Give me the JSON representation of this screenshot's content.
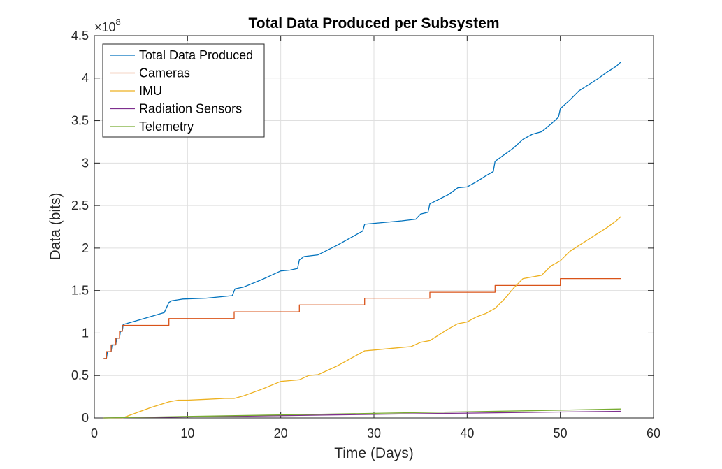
{
  "chart_data": {
    "type": "line",
    "title": "Total Data Produced per Subsystem",
    "xlabel": "Time (Days)",
    "ylabel": "Data (bits)",
    "y_exponent": "×10",
    "y_exponent_power": "8",
    "xlim": [
      0,
      60
    ],
    "ylim": [
      0,
      4.5
    ],
    "x_ticks": [
      0,
      10,
      20,
      30,
      40,
      50,
      60
    ],
    "y_ticks": [
      0,
      0.5,
      1,
      1.5,
      2,
      2.5,
      3,
      3.5,
      4,
      4.5
    ],
    "x_tick_labels": [
      "0",
      "10",
      "20",
      "30",
      "40",
      "50",
      "60"
    ],
    "y_tick_labels": [
      "0",
      "0.5",
      "1",
      "1.5",
      "2",
      "2.5",
      "3",
      "3.5",
      "4",
      "4.5"
    ],
    "grid": true,
    "legend_position": "top-left",
    "series": [
      {
        "name": "Total Data Produced",
        "color": "#0072BD",
        "points": [
          [
            1.0,
            0.7
          ],
          [
            1.3,
            0.7
          ],
          [
            1.4,
            0.78
          ],
          [
            1.8,
            0.78
          ],
          [
            1.9,
            0.86
          ],
          [
            2.3,
            0.86
          ],
          [
            2.4,
            0.94
          ],
          [
            2.7,
            0.94
          ],
          [
            2.8,
            1.02
          ],
          [
            3.0,
            1.02
          ],
          [
            3.1,
            1.1
          ],
          [
            5.0,
            1.16
          ],
          [
            7.5,
            1.24
          ],
          [
            8.0,
            1.36
          ],
          [
            8.3,
            1.38
          ],
          [
            9.5,
            1.4
          ],
          [
            12,
            1.41
          ],
          [
            14.8,
            1.44
          ],
          [
            15.1,
            1.52
          ],
          [
            16,
            1.54
          ],
          [
            18,
            1.63
          ],
          [
            20,
            1.73
          ],
          [
            21,
            1.74
          ],
          [
            21.8,
            1.76
          ],
          [
            22.0,
            1.86
          ],
          [
            22.5,
            1.9
          ],
          [
            24,
            1.92
          ],
          [
            26,
            2.03
          ],
          [
            28.8,
            2.2
          ],
          [
            29.0,
            2.28
          ],
          [
            30,
            2.29
          ],
          [
            33,
            2.32
          ],
          [
            34.5,
            2.34
          ],
          [
            35,
            2.4
          ],
          [
            35.8,
            2.42
          ],
          [
            36.0,
            2.52
          ],
          [
            38,
            2.63
          ],
          [
            39,
            2.71
          ],
          [
            40,
            2.72
          ],
          [
            41,
            2.78
          ],
          [
            42,
            2.85
          ],
          [
            42.8,
            2.9
          ],
          [
            43.0,
            3.02
          ],
          [
            44,
            3.1
          ],
          [
            45,
            3.18
          ],
          [
            46,
            3.28
          ],
          [
            47,
            3.34
          ],
          [
            48,
            3.37
          ],
          [
            49,
            3.46
          ],
          [
            49.8,
            3.54
          ],
          [
            50.0,
            3.64
          ],
          [
            51,
            3.74
          ],
          [
            52,
            3.85
          ],
          [
            53,
            3.92
          ],
          [
            54,
            3.99
          ],
          [
            55,
            4.07
          ],
          [
            56,
            4.14
          ],
          [
            56.5,
            4.19
          ]
        ]
      },
      {
        "name": "Cameras",
        "color": "#D95319",
        "points": [
          [
            1.0,
            0.7
          ],
          [
            1.3,
            0.7
          ],
          [
            1.3,
            0.78
          ],
          [
            1.8,
            0.78
          ],
          [
            1.8,
            0.86
          ],
          [
            2.3,
            0.86
          ],
          [
            2.3,
            0.94
          ],
          [
            2.7,
            0.94
          ],
          [
            2.7,
            1.02
          ],
          [
            3.0,
            1.02
          ],
          [
            3.0,
            1.09
          ],
          [
            8.0,
            1.09
          ],
          [
            8.0,
            1.17
          ],
          [
            15.0,
            1.17
          ],
          [
            15.0,
            1.25
          ],
          [
            22.0,
            1.25
          ],
          [
            22.0,
            1.33
          ],
          [
            29.0,
            1.33
          ],
          [
            29.0,
            1.41
          ],
          [
            36.0,
            1.41
          ],
          [
            36.0,
            1.48
          ],
          [
            43.0,
            1.48
          ],
          [
            43.0,
            1.56
          ],
          [
            50.0,
            1.56
          ],
          [
            50.0,
            1.64
          ],
          [
            56.5,
            1.64
          ]
        ]
      },
      {
        "name": "IMU",
        "color": "#EDB120",
        "points": [
          [
            1.0,
            0.0
          ],
          [
            3.0,
            0.0
          ],
          [
            4,
            0.04
          ],
          [
            6,
            0.12
          ],
          [
            8,
            0.19
          ],
          [
            9,
            0.21
          ],
          [
            10,
            0.21
          ],
          [
            12,
            0.22
          ],
          [
            14,
            0.23
          ],
          [
            15,
            0.23
          ],
          [
            16,
            0.26
          ],
          [
            18,
            0.34
          ],
          [
            20,
            0.43
          ],
          [
            21,
            0.44
          ],
          [
            22,
            0.45
          ],
          [
            23,
            0.5
          ],
          [
            24,
            0.51
          ],
          [
            26,
            0.61
          ],
          [
            28,
            0.73
          ],
          [
            29,
            0.79
          ],
          [
            30,
            0.8
          ],
          [
            32,
            0.82
          ],
          [
            34,
            0.84
          ],
          [
            35,
            0.89
          ],
          [
            36,
            0.91
          ],
          [
            37,
            0.98
          ],
          [
            38,
            1.05
          ],
          [
            39,
            1.11
          ],
          [
            40,
            1.13
          ],
          [
            41,
            1.19
          ],
          [
            42,
            1.23
          ],
          [
            43,
            1.29
          ],
          [
            44,
            1.4
          ],
          [
            45,
            1.53
          ],
          [
            46,
            1.64
          ],
          [
            47,
            1.66
          ],
          [
            48,
            1.68
          ],
          [
            49,
            1.79
          ],
          [
            50,
            1.85
          ],
          [
            51,
            1.96
          ],
          [
            52,
            2.03
          ],
          [
            53,
            2.1
          ],
          [
            54,
            2.17
          ],
          [
            55,
            2.24
          ],
          [
            56,
            2.32
          ],
          [
            56.5,
            2.37
          ]
        ]
      },
      {
        "name": "Radiation Sensors",
        "color": "#7E2F8E",
        "points": [
          [
            1.0,
            0.0
          ],
          [
            10,
            0.012
          ],
          [
            20,
            0.027
          ],
          [
            30,
            0.043
          ],
          [
            40,
            0.057
          ],
          [
            50,
            0.07
          ],
          [
            56.5,
            0.078
          ]
        ]
      },
      {
        "name": "Telemetry",
        "color": "#77AC30",
        "points": [
          [
            1.0,
            0.0
          ],
          [
            10,
            0.018
          ],
          [
            20,
            0.036
          ],
          [
            30,
            0.054
          ],
          [
            40,
            0.073
          ],
          [
            50,
            0.091
          ],
          [
            56.5,
            0.105
          ]
        ]
      }
    ]
  }
}
